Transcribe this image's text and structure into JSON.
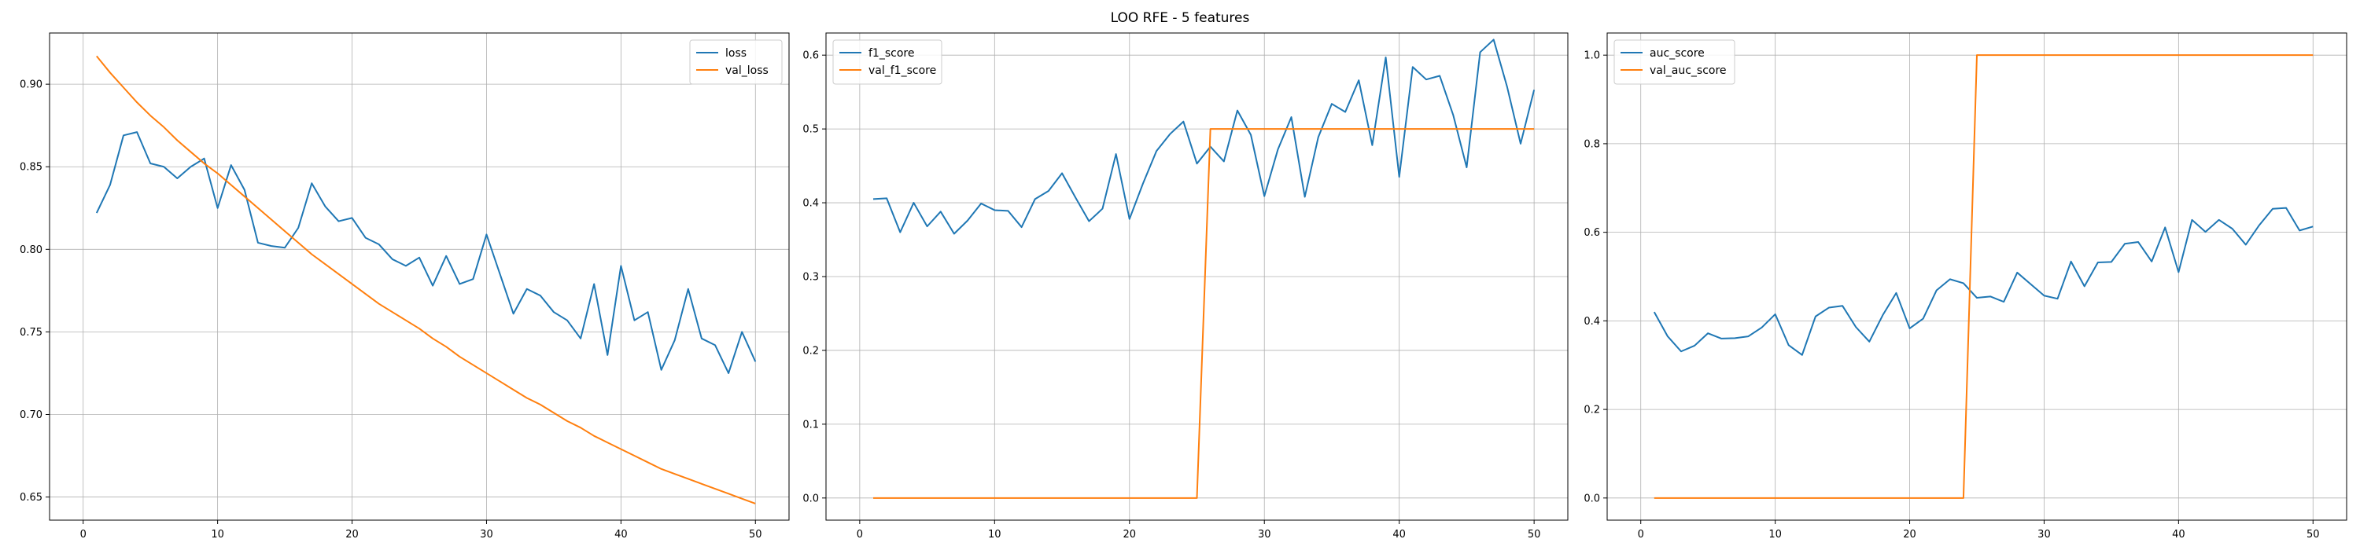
{
  "figure": {
    "title": "LOO RFE - 5 features"
  },
  "chart_data": [
    {
      "type": "line",
      "title": "",
      "xlabel": "",
      "ylabel": "",
      "xlim": [
        -2.5,
        52.5
      ],
      "ylim": [
        0.636,
        0.931
      ],
      "xticks": [
        0,
        10,
        20,
        30,
        40,
        50
      ],
      "xtick_labels": [
        "0",
        "10",
        "20",
        "30",
        "40",
        "50"
      ],
      "yticks": [
        0.65,
        0.7,
        0.75,
        0.8,
        0.85,
        0.9
      ],
      "ytick_labels": [
        "0.65",
        "0.70",
        "0.75",
        "0.80",
        "0.85",
        "0.90"
      ],
      "grid": true,
      "legend_position": "top-right",
      "x": [
        1,
        2,
        3,
        4,
        5,
        6,
        7,
        8,
        9,
        10,
        11,
        12,
        13,
        14,
        15,
        16,
        17,
        18,
        19,
        20,
        21,
        22,
        23,
        24,
        25,
        26,
        27,
        28,
        29,
        30,
        31,
        32,
        33,
        34,
        35,
        36,
        37,
        38,
        39,
        40,
        41,
        42,
        43,
        44,
        45,
        46,
        47,
        48,
        49,
        50
      ],
      "series": [
        {
          "name": "loss",
          "color": "#1f77b4",
          "values": [
            0.822,
            0.839,
            0.869,
            0.871,
            0.852,
            0.85,
            0.843,
            0.85,
            0.855,
            0.825,
            0.851,
            0.836,
            0.804,
            0.802,
            0.801,
            0.813,
            0.84,
            0.826,
            0.817,
            0.819,
            0.807,
            0.803,
            0.794,
            0.79,
            0.795,
            0.778,
            0.796,
            0.779,
            0.782,
            0.809,
            0.785,
            0.761,
            0.776,
            0.772,
            0.762,
            0.757,
            0.746,
            0.779,
            0.736,
            0.79,
            0.757,
            0.762,
            0.727,
            0.745,
            0.776,
            0.746,
            0.742,
            0.725,
            0.75,
            0.732
          ]
        },
        {
          "name": "val_loss",
          "color": "#ff7f0e",
          "values": [
            0.917,
            0.907,
            0.898,
            0.889,
            0.881,
            0.874,
            0.866,
            0.859,
            0.852,
            0.846,
            0.839,
            0.832,
            0.825,
            0.818,
            0.811,
            0.804,
            0.797,
            0.791,
            0.785,
            0.779,
            0.773,
            0.767,
            0.762,
            0.757,
            0.752,
            0.746,
            0.741,
            0.735,
            0.73,
            0.725,
            0.72,
            0.715,
            0.71,
            0.706,
            0.701,
            0.696,
            0.692,
            0.687,
            0.683,
            0.679,
            0.675,
            0.671,
            0.667,
            0.664,
            0.661,
            0.658,
            0.655,
            0.652,
            0.649,
            0.646
          ]
        }
      ]
    },
    {
      "type": "line",
      "title": "",
      "xlabel": "",
      "ylabel": "",
      "xlim": [
        -2.5,
        52.5
      ],
      "ylim": [
        -0.03,
        0.63
      ],
      "xticks": [
        0,
        10,
        20,
        30,
        40,
        50
      ],
      "xtick_labels": [
        "0",
        "10",
        "20",
        "30",
        "40",
        "50"
      ],
      "yticks": [
        0.0,
        0.1,
        0.2,
        0.3,
        0.4,
        0.5,
        0.6
      ],
      "ytick_labels": [
        "0.0",
        "0.1",
        "0.2",
        "0.3",
        "0.4",
        "0.5",
        "0.6"
      ],
      "grid": true,
      "legend_position": "top-left",
      "x": [
        1,
        2,
        3,
        4,
        5,
        6,
        7,
        8,
        9,
        10,
        11,
        12,
        13,
        14,
        15,
        16,
        17,
        18,
        19,
        20,
        21,
        22,
        23,
        24,
        25,
        26,
        27,
        28,
        29,
        30,
        31,
        32,
        33,
        34,
        35,
        36,
        37,
        38,
        39,
        40,
        41,
        42,
        43,
        44,
        45,
        46,
        47,
        48,
        49,
        50
      ],
      "series": [
        {
          "name": "f1_score",
          "color": "#1f77b4",
          "values": [
            0.405,
            0.406,
            0.36,
            0.4,
            0.368,
            0.388,
            0.358,
            0.376,
            0.399,
            0.39,
            0.389,
            0.367,
            0.405,
            0.416,
            0.44,
            0.407,
            0.375,
            0.392,
            0.466,
            0.378,
            0.426,
            0.47,
            0.493,
            0.51,
            0.453,
            0.476,
            0.456,
            0.525,
            0.492,
            0.409,
            0.472,
            0.516,
            0.408,
            0.489,
            0.534,
            0.523,
            0.566,
            0.478,
            0.597,
            0.435,
            0.584,
            0.567,
            0.572,
            0.519,
            0.448,
            0.604,
            0.621,
            0.557,
            0.48,
            0.553
          ]
        },
        {
          "name": "val_f1_score",
          "color": "#ff7f0e",
          "values": [
            0,
            0,
            0,
            0,
            0,
            0,
            0,
            0,
            0,
            0,
            0,
            0,
            0,
            0,
            0,
            0,
            0,
            0,
            0,
            0,
            0,
            0,
            0,
            0,
            0,
            0.5,
            0.5,
            0.5,
            0.5,
            0.5,
            0.5,
            0.5,
            0.5,
            0.5,
            0.5,
            0.5,
            0.5,
            0.5,
            0.5,
            0.5,
            0.5,
            0.5,
            0.5,
            0.5,
            0.5,
            0.5,
            0.5,
            0.5,
            0.5,
            0.5
          ]
        }
      ]
    },
    {
      "type": "line",
      "title": "",
      "xlabel": "",
      "ylabel": "",
      "xlim": [
        -2.5,
        52.5
      ],
      "ylim": [
        -0.05,
        1.05
      ],
      "xticks": [
        0,
        10,
        20,
        30,
        40,
        50
      ],
      "xtick_labels": [
        "0",
        "10",
        "20",
        "30",
        "40",
        "50"
      ],
      "yticks": [
        0.0,
        0.2,
        0.4,
        0.6,
        0.8,
        1.0
      ],
      "ytick_labels": [
        "0.0",
        "0.2",
        "0.4",
        "0.6",
        "0.8",
        "1.0"
      ],
      "grid": true,
      "legend_position": "top-left",
      "x": [
        1,
        2,
        3,
        4,
        5,
        6,
        7,
        8,
        9,
        10,
        11,
        12,
        13,
        14,
        15,
        16,
        17,
        18,
        19,
        20,
        21,
        22,
        23,
        24,
        25,
        26,
        27,
        28,
        29,
        30,
        31,
        32,
        33,
        34,
        35,
        36,
        37,
        38,
        39,
        40,
        41,
        42,
        43,
        44,
        45,
        46,
        47,
        48,
        49,
        50
      ],
      "series": [
        {
          "name": "auc_score",
          "color": "#1f77b4",
          "values": [
            0.42,
            0.365,
            0.331,
            0.344,
            0.372,
            0.36,
            0.361,
            0.365,
            0.385,
            0.415,
            0.345,
            0.323,
            0.41,
            0.43,
            0.434,
            0.386,
            0.353,
            0.413,
            0.463,
            0.383,
            0.405,
            0.469,
            0.494,
            0.485,
            0.452,
            0.455,
            0.443,
            0.509,
            0.483,
            0.457,
            0.45,
            0.534,
            0.478,
            0.532,
            0.533,
            0.574,
            0.578,
            0.534,
            0.611,
            0.51,
            0.628,
            0.601,
            0.628,
            0.608,
            0.572,
            0.616,
            0.653,
            0.655,
            0.604,
            0.613
          ]
        },
        {
          "name": "val_auc_score",
          "color": "#ff7f0e",
          "values": [
            0,
            0,
            0,
            0,
            0,
            0,
            0,
            0,
            0,
            0,
            0,
            0,
            0,
            0,
            0,
            0,
            0,
            0,
            0,
            0,
            0,
            0,
            0,
            0,
            1,
            1,
            1,
            1,
            1,
            1,
            1,
            1,
            1,
            1,
            1,
            1,
            1,
            1,
            1,
            1,
            1,
            1,
            1,
            1,
            1,
            1,
            1,
            1,
            1,
            1
          ]
        }
      ]
    }
  ]
}
